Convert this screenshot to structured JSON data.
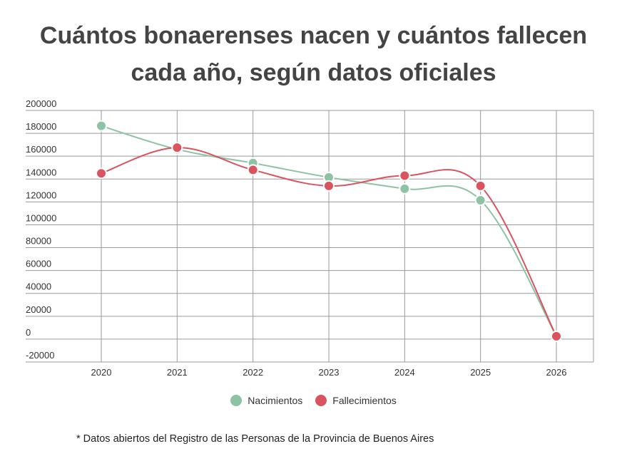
{
  "title_line1": "Cuántos bonaerenses nacen y cuántos fallecen",
  "title_line2": "cada año, según datos oficiales",
  "footnote": "* Datos abiertos del Registro de las Personas de la Provincia de Buenos Aires",
  "chart_data": {
    "type": "line",
    "x": [
      "2020",
      "2021",
      "2022",
      "2023",
      "2024",
      "2025",
      "2026"
    ],
    "ylim": [
      -20000,
      200000
    ],
    "yticks": [
      "200000",
      "180000",
      "160000",
      "140000",
      "120000",
      "100000",
      "80000",
      "60000",
      "40000",
      "20000",
      "0",
      "-20000"
    ],
    "grid": true,
    "legend_position": "bottom",
    "series": [
      {
        "name": "Nacimientos",
        "color": "#8dc3a2",
        "values": [
          186500,
          166000,
          154000,
          141500,
          131500,
          121500,
          2500
        ]
      },
      {
        "name": "Fallecimientos",
        "color": "#d9545e",
        "values": [
          145000,
          167500,
          148000,
          134000,
          143000,
          134000,
          2500
        ]
      }
    ]
  }
}
